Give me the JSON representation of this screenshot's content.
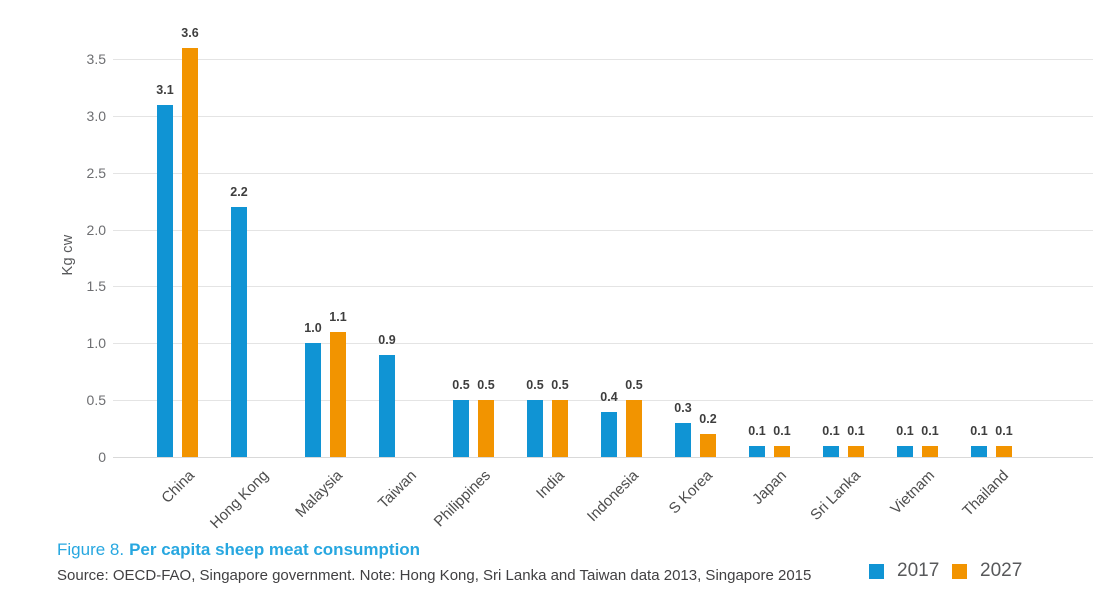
{
  "chart_data": {
    "type": "bar",
    "figure_label": "Figure 8.",
    "title": "Per capita sheep meat consumption",
    "categories": [
      "China",
      "Hong Kong",
      "Malaysia",
      "Taiwan",
      "Philippines",
      "India",
      "Indonesia",
      "S Korea",
      "Japan",
      "Sri Lanka",
      "Vietnam",
      "Thailand"
    ],
    "series": [
      {
        "name": "2017",
        "color": "#1094d4",
        "values": [
          3.1,
          2.2,
          1.0,
          0.9,
          0.5,
          0.5,
          0.4,
          0.3,
          0.1,
          0.1,
          0.1,
          0.1
        ]
      },
      {
        "name": "2027",
        "color": "#f29400",
        "values": [
          3.6,
          null,
          1.1,
          null,
          0.5,
          0.5,
          0.5,
          0.2,
          0.1,
          0.1,
          0.1,
          0.1
        ]
      }
    ],
    "xlabel": "",
    "ylabel": "Kg cw",
    "ylim": [
      0,
      3.5
    ],
    "ytick_step": 0.5,
    "ytick_labels": [
      "0",
      "0.5",
      "1.0",
      "1.5",
      "2.0",
      "2.5",
      "3.0",
      "3.5"
    ],
    "grid": true,
    "value_labels": true,
    "value_label_format": "one-decimal",
    "legend_position": "bottom-right"
  },
  "caption": {
    "figure_label": "Figure 8.",
    "title_text": "Per capita sheep meat consumption"
  },
  "source_note": "Source: OECD-FAO, Singapore government. Note: Hong Kong, Sri Lanka and Taiwan data 2013, Singapore 2015",
  "colors": {
    "series_2017": "#1094d4",
    "series_2027": "#f29400",
    "caption_blue": "#27a7e0",
    "gridline": "#e4e4e4"
  }
}
